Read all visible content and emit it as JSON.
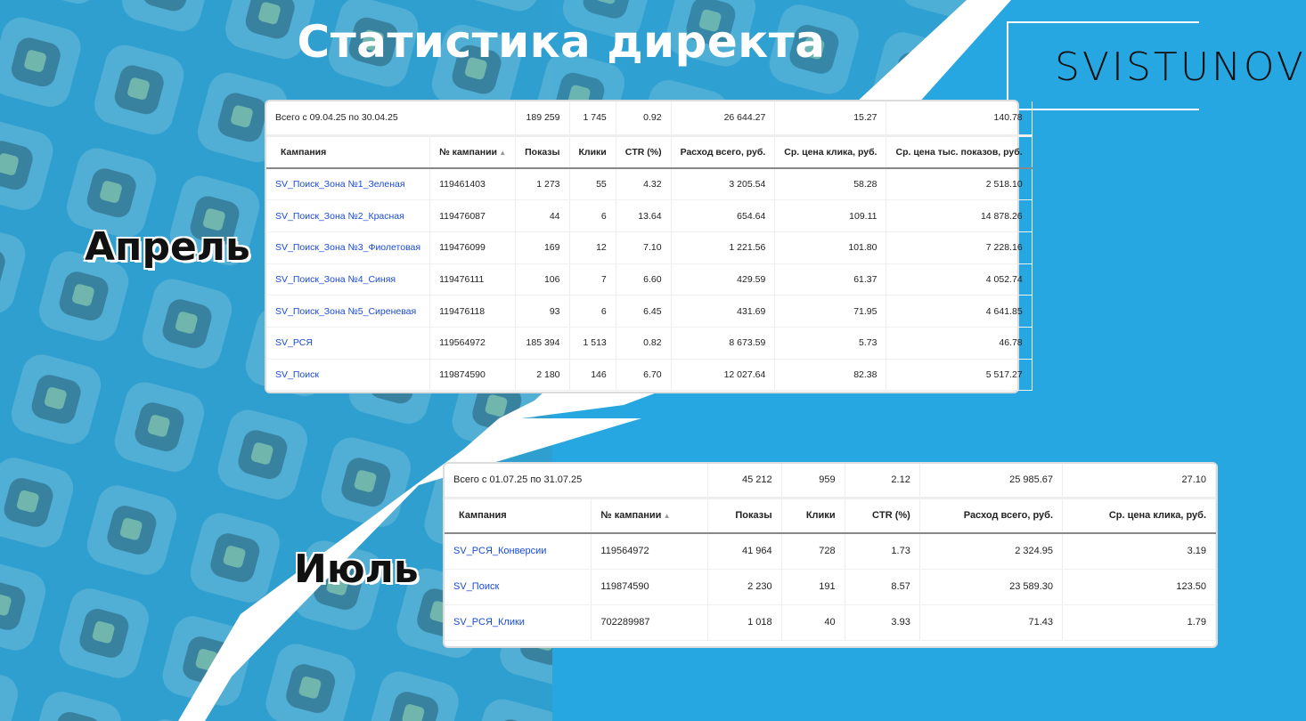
{
  "title": "Статистика директа",
  "logo": "SVISTUNOV",
  "colors": {
    "background": "#27a7e1",
    "link": "#1a4bd6"
  },
  "april": {
    "label": "Апрель",
    "total_label": "Всего с 09.04.25 по 30.04.25",
    "totals": [
      "189 259",
      "1 745",
      "0.92",
      "26 644.27",
      "15.27",
      "140.78"
    ],
    "headers": [
      "Кампания",
      "№ кампании",
      "Показы",
      "Клики",
      "CTR (%)",
      "Расход всего, руб.",
      "Ср. цена клика, руб.",
      "Ср. цена тыс. показов, руб."
    ],
    "rows": [
      [
        "SV_Поиск_Зона №1_Зеленая",
        "119461403",
        "1 273",
        "55",
        "4.32",
        "3 205.54",
        "58.28",
        "2 518.10"
      ],
      [
        "SV_Поиск_Зона №2_Красная",
        "119476087",
        "44",
        "6",
        "13.64",
        "654.64",
        "109.11",
        "14 878.26"
      ],
      [
        "SV_Поиск_Зона №3_Фиолетовая",
        "119476099",
        "169",
        "12",
        "7.10",
        "1 221.56",
        "101.80",
        "7 228.16"
      ],
      [
        "SV_Поиск_Зона №4_Синяя",
        "119476111",
        "106",
        "7",
        "6.60",
        "429.59",
        "61.37",
        "4 052.74"
      ],
      [
        "SV_Поиск_Зона №5_Сиреневая",
        "119476118",
        "93",
        "6",
        "6.45",
        "431.69",
        "71.95",
        "4 641.85"
      ],
      [
        "SV_РСЯ",
        "119564972",
        "185 394",
        "1 513",
        "0.82",
        "8 673.59",
        "5.73",
        "46.78"
      ],
      [
        "SV_Поиск",
        "119874590",
        "2 180",
        "146",
        "6.70",
        "12 027.64",
        "82.38",
        "5 517.27"
      ]
    ]
  },
  "july": {
    "label": "Июль",
    "total_label": "Всего с 01.07.25 по 31.07.25",
    "totals": [
      "45 212",
      "959",
      "2.12",
      "25 985.67",
      "27.10"
    ],
    "headers": [
      "Кампания",
      "№ кампании",
      "Показы",
      "Клики",
      "CTR (%)",
      "Расход всего, руб.",
      "Ср. цена клика, руб."
    ],
    "rows": [
      [
        "SV_РСЯ_Конверсии",
        "119564972",
        "41 964",
        "728",
        "1.73",
        "2 324.95",
        "3.19"
      ],
      [
        "SV_Поиск",
        "119874590",
        "2 230",
        "191",
        "8.57",
        "23 589.30",
        "123.50"
      ],
      [
        "SV_РСЯ_Клики",
        "702289987",
        "1 018",
        "40",
        "3.93",
        "71.43",
        "1.79"
      ]
    ]
  }
}
